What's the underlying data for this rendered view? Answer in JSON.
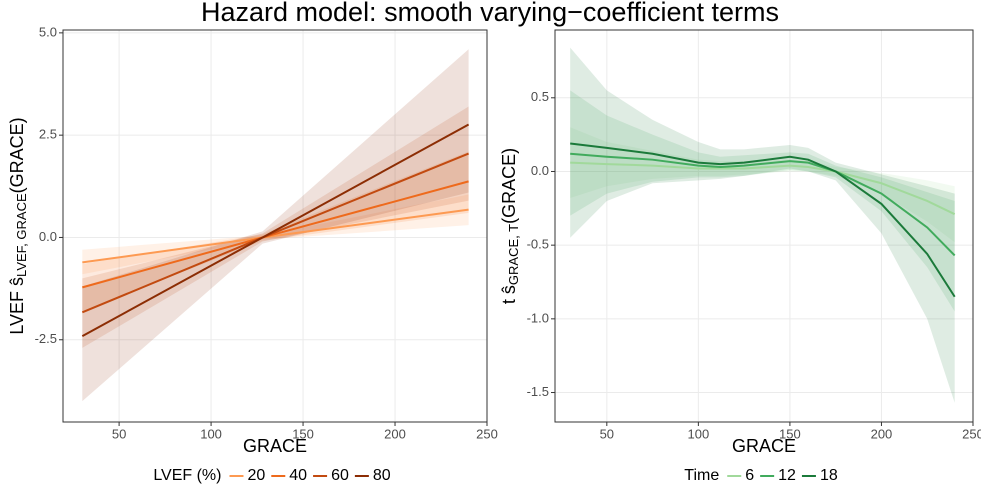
{
  "title": "Hazard model: smooth varying−coefficient terms",
  "chart_data": [
    {
      "type": "line",
      "xlabel": "GRACE",
      "ylabel": {
        "main": "LVEF ŝ",
        "sub": "LVEF, GRACE",
        "end": "(GRACE)"
      },
      "x": [
        30,
        128,
        240
      ],
      "xlim": [
        19.5,
        250
      ],
      "xticks": [
        50,
        100,
        150,
        200,
        250
      ],
      "ylim": [
        -4.51,
        5.07
      ],
      "yticks": [
        {
          "value": 5,
          "label": "5.0"
        },
        2.5,
        {
          "value": 0,
          "label": "0.0"
        },
        -2.5
      ],
      "grid": true,
      "legend": "bottom",
      "legend_title": "LVEF (%)",
      "series": [
        {
          "name": "20",
          "color": "#fd9a52",
          "values": [
            -0.61,
            0,
            0.68
          ],
          "lower": [
            -0.9,
            -0.05,
            0.3
          ],
          "upper": [
            -0.3,
            0.05,
            1.05
          ]
        },
        {
          "name": "40",
          "color": "#ee6a1c",
          "values": [
            -1.22,
            0,
            1.37
          ],
          "lower": [
            -1.8,
            -0.08,
            0.6
          ],
          "upper": [
            -0.65,
            0.08,
            2.1
          ]
        },
        {
          "name": "60",
          "color": "#c24a10",
          "values": [
            -1.83,
            0,
            2.05
          ],
          "lower": [
            -2.7,
            -0.1,
            0.9
          ],
          "upper": [
            -1.0,
            0.1,
            3.2
          ]
        },
        {
          "name": "80",
          "color": "#8c2d04",
          "values": [
            -2.41,
            0,
            2.76
          ],
          "lower": [
            -4.0,
            -0.15,
            1.1
          ],
          "upper": [
            -1.2,
            0.15,
            4.6
          ]
        }
      ]
    },
    {
      "type": "line",
      "xlabel": "GRACE",
      "ylabel": {
        "main": "t ŝ",
        "sub": "GRACE, T",
        "end": "(GRACE)"
      },
      "x": [
        30,
        50,
        75,
        100,
        112,
        125,
        150,
        160,
        175,
        200,
        225,
        240
      ],
      "xlim": [
        21.7,
        250
      ],
      "xticks": [
        50,
        100,
        150,
        200,
        250
      ],
      "ylim": [
        -1.7,
        0.96
      ],
      "yticks": [
        0.5,
        {
          "value": 0,
          "label": "0.0"
        },
        -0.5,
        {
          "value": -1,
          "label": "-1.0"
        },
        -1.5
      ],
      "grid": true,
      "legend": "bottom",
      "legend_title": "Time",
      "series": [
        {
          "name": "6",
          "color": "#a1d99b",
          "values": [
            0.06,
            0.05,
            0.04,
            0.02,
            0.02,
            0.02,
            0.04,
            0.03,
            0.0,
            -0.08,
            -0.2,
            -0.29
          ],
          "lower": [
            -0.18,
            -0.1,
            -0.05,
            -0.03,
            -0.03,
            -0.02,
            0.0,
            0.0,
            -0.03,
            -0.15,
            -0.34,
            -0.48
          ],
          "upper": [
            0.3,
            0.2,
            0.14,
            0.08,
            0.07,
            0.07,
            0.08,
            0.07,
            0.03,
            -0.01,
            -0.06,
            -0.1
          ]
        },
        {
          "name": "12",
          "color": "#41ab5d",
          "values": [
            0.12,
            0.1,
            0.08,
            0.04,
            0.03,
            0.04,
            0.07,
            0.06,
            0.0,
            -0.15,
            -0.38,
            -0.57
          ],
          "lower": [
            -0.3,
            -0.15,
            -0.07,
            -0.04,
            -0.04,
            -0.03,
            0.01,
            0.0,
            -0.04,
            -0.27,
            -0.65,
            -0.95
          ],
          "upper": [
            0.55,
            0.38,
            0.25,
            0.13,
            0.1,
            0.11,
            0.13,
            0.12,
            0.04,
            -0.04,
            -0.14,
            -0.2
          ]
        },
        {
          "name": "18",
          "color": "#1b7a3a",
          "values": [
            0.19,
            0.16,
            0.12,
            0.06,
            0.05,
            0.06,
            0.1,
            0.08,
            0.0,
            -0.22,
            -0.56,
            -0.85
          ],
          "lower": [
            -0.45,
            -0.2,
            -0.08,
            -0.06,
            -0.05,
            -0.03,
            0.02,
            0.0,
            -0.06,
            -0.42,
            -1.0,
            -1.57
          ],
          "upper": [
            0.84,
            0.55,
            0.35,
            0.2,
            0.15,
            0.15,
            0.18,
            0.16,
            0.06,
            -0.02,
            -0.1,
            -0.15
          ]
        }
      ]
    }
  ]
}
